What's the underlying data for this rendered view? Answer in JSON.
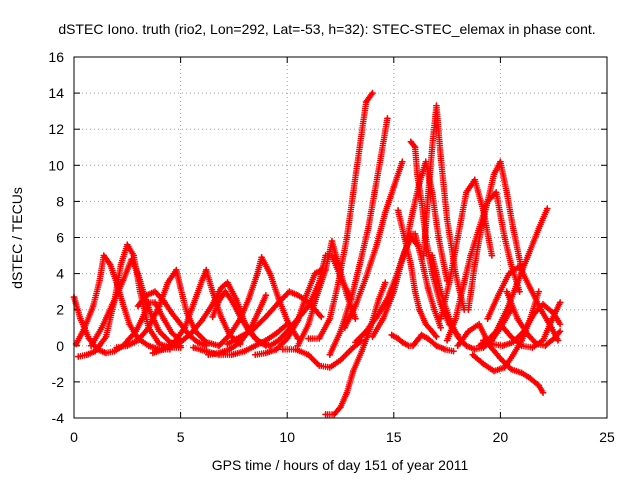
{
  "chart_data": {
    "type": "scatter",
    "title": "dSTEC Iono. truth (rio2, Lon=292, Lat=-53, h=32): STEC-STEC_elemax in phase cont.",
    "xlabel": "GPS time / hours of day 151 of year 2011",
    "ylabel": "dSTEC  / TECUs",
    "xlim": [
      0,
      25
    ],
    "ylim": [
      -4,
      16
    ],
    "xticks": [
      0,
      5,
      10,
      15,
      20,
      25
    ],
    "yticks": [
      -4,
      -2,
      0,
      2,
      4,
      6,
      8,
      10,
      12,
      14,
      16
    ],
    "grid": true,
    "marker": "+",
    "color": "#ff0000",
    "series": [
      {
        "x": [
          0.0,
          0.3,
          0.7,
          1.1,
          1.5,
          1.9,
          2.3,
          2.6,
          2.9,
          3.2,
          3.5,
          3.8,
          4.2,
          4.6,
          5.0
        ],
        "y": [
          2.7,
          1.5,
          0.4,
          -0.2,
          -0.4,
          -0.3,
          0.0,
          0.4,
          0.8,
          1.5,
          2.4,
          2.4,
          1.5,
          0.7,
          0.3
        ]
      },
      {
        "x": [
          0.1,
          0.5,
          0.9,
          1.2,
          1.4,
          1.7,
          2.0,
          2.3,
          2.6,
          3.0,
          3.5,
          4.0,
          4.5
        ],
        "y": [
          0.1,
          1.0,
          2.2,
          3.6,
          5.0,
          4.5,
          3.5,
          2.3,
          1.2,
          0.4,
          0.0,
          -0.2,
          -0.2
        ]
      },
      {
        "x": [
          0.2,
          0.6,
          1.0,
          1.5,
          1.9,
          2.2,
          2.5,
          2.8,
          3.1,
          3.5,
          4.0,
          4.5,
          5.0
        ],
        "y": [
          -0.6,
          -0.5,
          -0.3,
          0.5,
          2.5,
          4.5,
          5.6,
          5.0,
          3.0,
          1.0,
          0.1,
          -0.1,
          -0.1
        ]
      },
      {
        "x": [
          0.8,
          1.3,
          1.8,
          2.3,
          2.7,
          3.0,
          3.3,
          3.6,
          4.0,
          4.5,
          5.0
        ],
        "y": [
          0.0,
          1.0,
          2.3,
          3.6,
          4.8,
          4.0,
          2.8,
          1.8,
          0.8,
          0.2,
          0.0
        ]
      },
      {
        "x": [
          2.0,
          2.5,
          3.0,
          3.5,
          4.0,
          4.4,
          4.8,
          5.0,
          5.3,
          5.7,
          6.2,
          6.8
        ],
        "y": [
          -0.1,
          0.0,
          0.3,
          1.0,
          2.2,
          3.5,
          4.2,
          3.2,
          1.8,
          0.8,
          0.2,
          0.0
        ]
      },
      {
        "x": [
          3.0,
          3.4,
          3.8,
          4.2,
          4.6,
          5.0,
          5.4,
          5.8,
          6.2
        ],
        "y": [
          2.2,
          2.8,
          3.0,
          2.5,
          1.8,
          1.2,
          0.6,
          0.2,
          0.0
        ]
      },
      {
        "x": [
          3.7,
          4.2,
          4.7,
          5.2,
          5.6,
          6.0,
          6.2,
          6.5,
          6.9,
          7.3,
          7.8
        ],
        "y": [
          -0.4,
          -0.2,
          0.2,
          1.0,
          2.3,
          3.6,
          4.2,
          3.0,
          1.6,
          0.6,
          0.1
        ]
      },
      {
        "x": [
          4.5,
          5.0,
          5.5,
          6.0,
          6.5,
          6.9,
          7.2,
          7.6,
          8.0,
          8.5,
          9.0
        ],
        "y": [
          0.0,
          0.2,
          0.7,
          1.4,
          2.3,
          3.2,
          3.5,
          2.6,
          1.3,
          0.4,
          0.0
        ]
      },
      {
        "x": [
          5.6,
          6.2,
          6.8,
          7.4,
          8.0,
          8.5,
          9.0,
          9.5,
          10.0
        ],
        "y": [
          -0.1,
          -0.3,
          -0.5,
          -0.5,
          -0.3,
          0.0,
          0.3,
          0.7,
          1.2
        ]
      },
      {
        "x": [
          6.5,
          6.8,
          7.1,
          7.4,
          7.8,
          8.2,
          8.7,
          9.2
        ],
        "y": [
          1.6,
          2.5,
          3.0,
          2.5,
          1.6,
          0.8,
          0.2,
          0.0
        ]
      },
      {
        "x": [
          6.3,
          6.8,
          7.3,
          7.8,
          8.3,
          8.7,
          9.0
        ],
        "y": [
          -0.5,
          -0.4,
          -0.2,
          0.2,
          1.0,
          2.0,
          2.8
        ]
      },
      {
        "x": [
          6.8,
          7.3,
          7.8,
          8.2,
          8.6,
          8.8,
          9.2,
          9.6,
          10.0,
          10.5
        ],
        "y": [
          0.0,
          0.6,
          1.5,
          2.6,
          4.0,
          4.9,
          4.0,
          2.6,
          1.4,
          0.4
        ]
      },
      {
        "x": [
          7.2,
          7.8,
          8.4,
          9.0,
          9.6,
          10.1,
          10.5,
          10.9,
          11.3,
          11.6
        ],
        "y": [
          0.1,
          0.5,
          0.9,
          1.6,
          2.4,
          3.0,
          2.8,
          2.5,
          2.0,
          1.6
        ]
      },
      {
        "x": [
          8.5,
          9.0,
          9.5,
          10.0,
          10.5,
          10.9,
          11.3,
          11.6
        ],
        "y": [
          -0.5,
          -0.4,
          -0.2,
          0.4,
          1.4,
          2.8,
          4.0,
          4.2
        ]
      },
      {
        "x": [
          9.2,
          9.6,
          10.0,
          10.5,
          11.0,
          11.5,
          11.8,
          12.1,
          12.5,
          13.0
        ],
        "y": [
          0.0,
          0.3,
          0.8,
          1.5,
          2.2,
          3.5,
          5.0,
          5.0,
          3.8,
          2.6
        ]
      },
      {
        "x": [
          9.8,
          10.4,
          11.0,
          11.5,
          12.0,
          12.5,
          13.0,
          13.5
        ],
        "y": [
          -0.2,
          -0.2,
          -0.5,
          -1.1,
          -1.2,
          -0.8,
          -0.2,
          0.3
        ]
      },
      {
        "x": [
          10.5,
          11.0,
          11.4,
          11.8,
          12.1,
          12.4,
          12.8,
          13.2
        ],
        "y": [
          0.0,
          1.2,
          2.8,
          4.2,
          5.8,
          4.5,
          2.8,
          1.5
        ]
      },
      {
        "x": [
          11.0,
          11.5,
          12.0,
          12.4,
          12.8,
          13.1,
          13.4,
          13.7,
          14.0
        ],
        "y": [
          0.4,
          0.4,
          1.5,
          3.5,
          6.0,
          8.5,
          11.0,
          13.5,
          14.0
        ]
      },
      {
        "x": [
          11.8,
          12.2,
          12.5,
          12.8,
          13.1,
          13.5,
          13.9,
          14.3,
          14.6
        ],
        "y": [
          -3.8,
          -3.8,
          -3.4,
          -2.6,
          -1.4,
          -0.3,
          1.0,
          2.6,
          3.5
        ]
      },
      {
        "x": [
          12.0,
          12.5,
          13.0,
          13.4,
          13.8,
          14.1,
          14.4,
          14.7
        ],
        "y": [
          -0.5,
          0.8,
          2.6,
          4.5,
          6.5,
          8.5,
          10.5,
          12.6
        ]
      },
      {
        "x": [
          12.7,
          13.2,
          13.7,
          14.2,
          14.6,
          15.0,
          15.4
        ],
        "y": [
          1.0,
          2.2,
          3.8,
          5.6,
          7.4,
          8.8,
          10.2
        ]
      },
      {
        "x": [
          13.2,
          13.7,
          14.2,
          14.7,
          15.1,
          15.5,
          15.8,
          16.1
        ],
        "y": [
          0.2,
          0.8,
          1.6,
          2.6,
          3.8,
          5.2,
          6.0,
          5.6
        ]
      },
      {
        "x": [
          14.0,
          14.5,
          15.0,
          15.4,
          15.8,
          16.0,
          16.3,
          16.6,
          16.9,
          17.2
        ],
        "y": [
          0.5,
          1.5,
          3.0,
          4.8,
          6.2,
          6.2,
          4.8,
          3.2,
          2.0,
          1.0
        ]
      },
      {
        "x": [
          15.2,
          15.5,
          15.8,
          16.0,
          16.2,
          16.5,
          16.8,
          17.0
        ],
        "y": [
          7.5,
          6.0,
          4.5,
          3.0,
          2.0,
          1.2,
          0.8,
          0.5
        ]
      },
      {
        "x": [
          14.9,
          15.2,
          15.4,
          15.7,
          15.9,
          16.1,
          16.3,
          16.6,
          17.0,
          17.4,
          17.8
        ],
        "y": [
          0.6,
          0.4,
          0.2,
          0.0,
          0.0,
          0.3,
          0.6,
          0.4,
          0.0,
          -0.2,
          -0.3
        ]
      },
      {
        "x": [
          15.8,
          16.0,
          16.1,
          16.3,
          16.5,
          16.8,
          17.2,
          17.6,
          18.0
        ],
        "y": [
          11.3,
          11.0,
          9.5,
          8.0,
          6.0,
          4.0,
          2.3,
          1.2,
          0.6
        ]
      },
      {
        "x": [
          15.6,
          15.9,
          16.2,
          16.5,
          16.8,
          17.1,
          17.5
        ],
        "y": [
          5.8,
          7.5,
          9.0,
          10.2,
          8.5,
          6.0,
          3.6
        ]
      },
      {
        "x": [
          16.4,
          16.6,
          16.8,
          17.0,
          17.2,
          17.5,
          17.9,
          18.3
        ],
        "y": [
          5.0,
          8.2,
          11.0,
          13.3,
          10.5,
          7.0,
          4.0,
          2.0
        ]
      },
      {
        "x": [
          16.8,
          17.2,
          17.6,
          18.0,
          18.4,
          18.8,
          19.2,
          19.6,
          20.0,
          20.5
        ],
        "y": [
          5.0,
          3.0,
          1.5,
          0.5,
          0.0,
          -0.2,
          -0.1,
          0.3,
          1.0,
          2.0
        ]
      },
      {
        "x": [
          17.2,
          17.6,
          18.0,
          18.4,
          18.8,
          19.2,
          19.6
        ],
        "y": [
          1.5,
          3.5,
          6.0,
          8.5,
          9.2,
          7.5,
          5.0
        ]
      },
      {
        "x": [
          17.5,
          17.9,
          18.3,
          18.6,
          19.0,
          19.4,
          19.8,
          20.2,
          20.5,
          20.9
        ],
        "y": [
          0.3,
          1.5,
          3.5,
          5.0,
          6.5,
          8.0,
          8.5,
          6.0,
          4.5,
          3.0
        ]
      },
      {
        "x": [
          18.5,
          18.8,
          19.1,
          19.4,
          19.7,
          20.0,
          20.3,
          20.6,
          21.0
        ],
        "y": [
          2.0,
          4.5,
          6.5,
          8.0,
          9.5,
          10.2,
          8.5,
          6.5,
          4.2
        ]
      },
      {
        "x": [
          18.0,
          18.5,
          19.0,
          19.5,
          20.0,
          20.5,
          21.0,
          21.4,
          21.8,
          22.0
        ],
        "y": [
          0.0,
          0.8,
          1.2,
          0.0,
          -0.7,
          -1.3,
          -1.5,
          -1.8,
          -2.2,
          -2.6
        ]
      },
      {
        "x": [
          18.7,
          19.2,
          19.7,
          20.2,
          20.6,
          21.0,
          21.4,
          21.8
        ],
        "y": [
          -0.5,
          -1.0,
          -1.4,
          -1.2,
          -0.5,
          0.3,
          1.5,
          3.0
        ]
      },
      {
        "x": [
          19.0,
          19.4,
          19.8,
          20.3,
          20.8,
          21.3,
          21.8,
          22.2
        ],
        "y": [
          0.0,
          0.3,
          0.8,
          2.0,
          3.5,
          5.0,
          6.5,
          7.6
        ]
      },
      {
        "x": [
          19.2,
          19.6,
          20.1,
          20.6,
          21.1,
          21.6,
          22.0,
          22.5,
          22.8
        ],
        "y": [
          0.3,
          0.1,
          0.0,
          0.2,
          0.8,
          1.8,
          2.3,
          1.8,
          1.2
        ]
      },
      {
        "x": [
          19.4,
          19.9,
          20.4,
          20.9,
          21.4,
          21.9,
          22.4,
          22.7
        ],
        "y": [
          1.5,
          2.8,
          4.0,
          4.4,
          3.2,
          2.0,
          1.0,
          0.3
        ]
      },
      {
        "x": [
          20.0,
          20.5,
          21.0,
          21.5,
          22.0,
          22.4,
          22.8
        ],
        "y": [
          1.2,
          0.5,
          0.0,
          -0.1,
          0.3,
          1.4,
          2.4
        ]
      },
      {
        "x": [
          20.3,
          20.8,
          21.3,
          21.7,
          22.1,
          22.5,
          22.8
        ],
        "y": [
          3.0,
          1.5,
          0.6,
          0.1,
          0.0,
          0.4,
          0.8
        ]
      }
    ]
  }
}
